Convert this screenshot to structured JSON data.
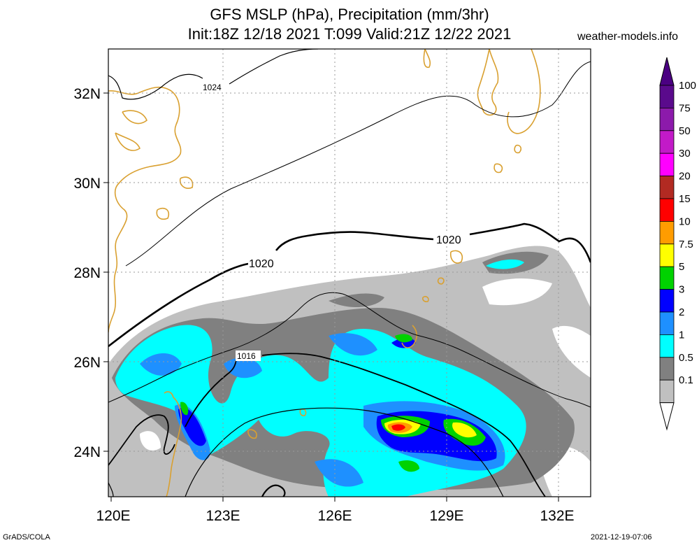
{
  "title": {
    "line1": "GFS MSLP (hPa), Precipitation (mm/3hr)",
    "line2": "Init:18Z 12/18 2021 T:099 Valid:21Z 12/22 2021"
  },
  "source": "weather-models.info",
  "footer": {
    "left": "GrADS/COLA",
    "right": "2021-12-19-07:06"
  },
  "map": {
    "lat_labels": [
      "32N",
      "30N",
      "28N",
      "26N",
      "24N"
    ],
    "lon_labels": [
      "120E",
      "123E",
      "126E",
      "129E",
      "132E"
    ],
    "contour_labels": [
      "1024",
      "1020",
      "1020",
      "1016"
    ]
  },
  "colorbar": {
    "labels": [
      "100",
      "75",
      "50",
      "30",
      "20",
      "15",
      "10",
      "7.5",
      "5",
      "3",
      "2",
      "1",
      "0.5",
      "0.1"
    ],
    "colors": [
      "#5a0a8c",
      "#8c1aab",
      "#c21ac8",
      "#ff00ff",
      "#b22a22",
      "#ff0000",
      "#ff9c00",
      "#ffff00",
      "#00d200",
      "#0000ff",
      "#1e90ff",
      "#00ffff",
      "#808080",
      "#c0c0c0"
    ]
  }
}
